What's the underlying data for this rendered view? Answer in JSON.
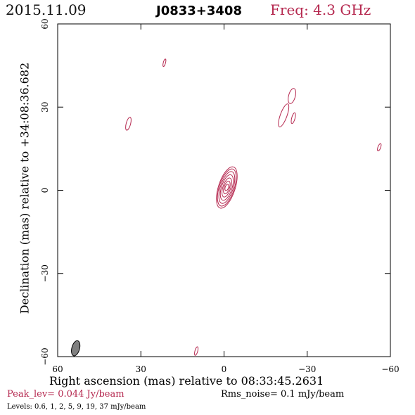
{
  "header": {
    "date": "2015.11.09",
    "source": "J0833+3408",
    "freq": "Freq: 4.3 GHz"
  },
  "axes": {
    "xlabel": "Right ascension (mas) relative to 08:33:45.2631",
    "ylabel": "Declination (mas) relative to +34:08:36.682"
  },
  "footer": {
    "peak": "Peak_lev=  0.044 Jy/beam",
    "rms": "Rms_noise=   0.1 mJy/beam",
    "levels": "Levels: 0.6,    1,    2,    5,    9,   19,   37 mJy/beam"
  },
  "colors": {
    "contour": "#b5284f",
    "freq": "#b5284f",
    "beam_fill": "#808080"
  },
  "chart_data": {
    "type": "contour",
    "xlim": [
      60,
      -60
    ],
    "ylim": [
      -60,
      60
    ],
    "x_ticks": [
      60,
      30,
      0,
      -30,
      -60
    ],
    "y_ticks": [
      -60,
      -30,
      0,
      30,
      60
    ],
    "x_tick_labels": [
      "60",
      "30",
      "0",
      "−30",
      "−60"
    ],
    "y_tick_labels": [
      "−60",
      "−30",
      "0",
      "30",
      "60"
    ],
    "contour_levels_mJy": [
      0.6,
      1,
      2,
      5,
      9,
      19,
      37
    ],
    "core": {
      "ra": -1.0,
      "dec": 1.0,
      "levels": [
        {
          "level": 0.6,
          "semi_major": 7.8,
          "semi_minor": 3.0,
          "pa": 18
        },
        {
          "level": 1,
          "semi_major": 7.0,
          "semi_minor": 2.7,
          "pa": 18
        },
        {
          "level": 2,
          "semi_major": 6.0,
          "semi_minor": 2.3,
          "pa": 18
        },
        {
          "level": 5,
          "semi_major": 4.8,
          "semi_minor": 1.9,
          "pa": 18
        },
        {
          "level": 9,
          "semi_major": 3.6,
          "semi_minor": 1.4,
          "pa": 18
        },
        {
          "level": 19,
          "semi_major": 2.4,
          "semi_minor": 1.0,
          "pa": 18
        },
        {
          "level": 37,
          "semi_major": 1.2,
          "semi_minor": 0.6,
          "pa": 18
        }
      ]
    },
    "weak_features": [
      {
        "ra": 21.5,
        "dec": 46,
        "semi_major": 1.4,
        "semi_minor": 0.4,
        "pa": 15
      },
      {
        "ra": 34.5,
        "dec": 24,
        "semi_major": 2.4,
        "semi_minor": 0.8,
        "pa": 15
      },
      {
        "ra": -24.5,
        "dec": 34,
        "semi_major": 2.8,
        "semi_minor": 1.2,
        "pa": 15
      },
      {
        "ra": -21.5,
        "dec": 27,
        "semi_major": 4.4,
        "semi_minor": 1.2,
        "pa": 20
      },
      {
        "ra": -25,
        "dec": 26,
        "semi_major": 2.0,
        "semi_minor": 0.6,
        "pa": 15
      },
      {
        "ra": -56,
        "dec": 15.5,
        "semi_major": 1.4,
        "semi_minor": 0.5,
        "pa": 20
      },
      {
        "ra": 10,
        "dec": -58,
        "semi_major": 1.6,
        "semi_minor": 0.5,
        "pa": 15
      }
    ],
    "beam": {
      "ra": 53.5,
      "dec": -57,
      "semi_major": 2.8,
      "semi_minor": 1.4,
      "pa": 15
    }
  }
}
